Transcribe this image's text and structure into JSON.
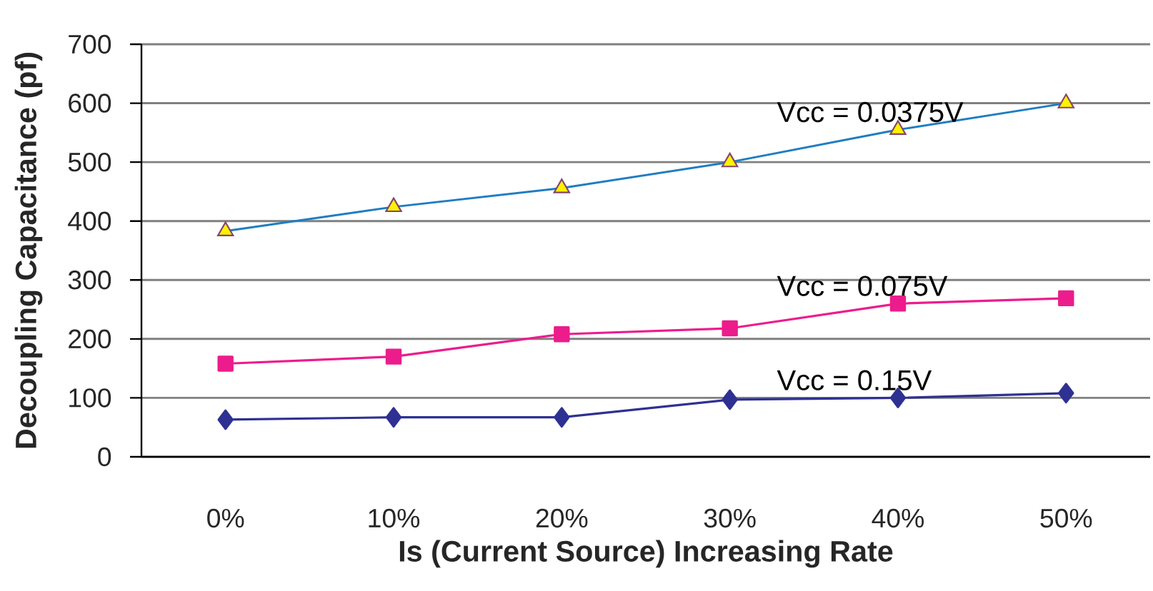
{
  "chart_data": {
    "type": "line",
    "xlabel": "Is (Current Source) Increasing Rate",
    "ylabel": "Decoupling Capacitance (pf)",
    "categories": [
      "0%",
      "10%",
      "20%",
      "30%",
      "40%",
      "50%"
    ],
    "ylim": [
      0,
      700
    ],
    "yticks": [
      0,
      100,
      200,
      300,
      400,
      500,
      600,
      700
    ],
    "grid": "y",
    "series": [
      {
        "name": "Vcc = 0.0375V",
        "color": "#1f7dc2",
        "colors": [
          "#fff200",
          "#fff200",
          "#fff200",
          "#fff200",
          "#fff200",
          "#fff200"
        ],
        "marker": "triangle",
        "values": [
          383,
          424,
          456,
          500,
          555,
          600
        ]
      },
      {
        "name": "Vcc = 0.075V",
        "color": "#ec1c8c",
        "marker": "square",
        "values": [
          158,
          170,
          208,
          218,
          260,
          269
        ]
      },
      {
        "name": "Vcc = 0.15V",
        "color": "#2e3192",
        "marker": "diamond",
        "values": [
          63,
          67,
          67,
          97,
          100,
          108
        ]
      }
    ]
  }
}
